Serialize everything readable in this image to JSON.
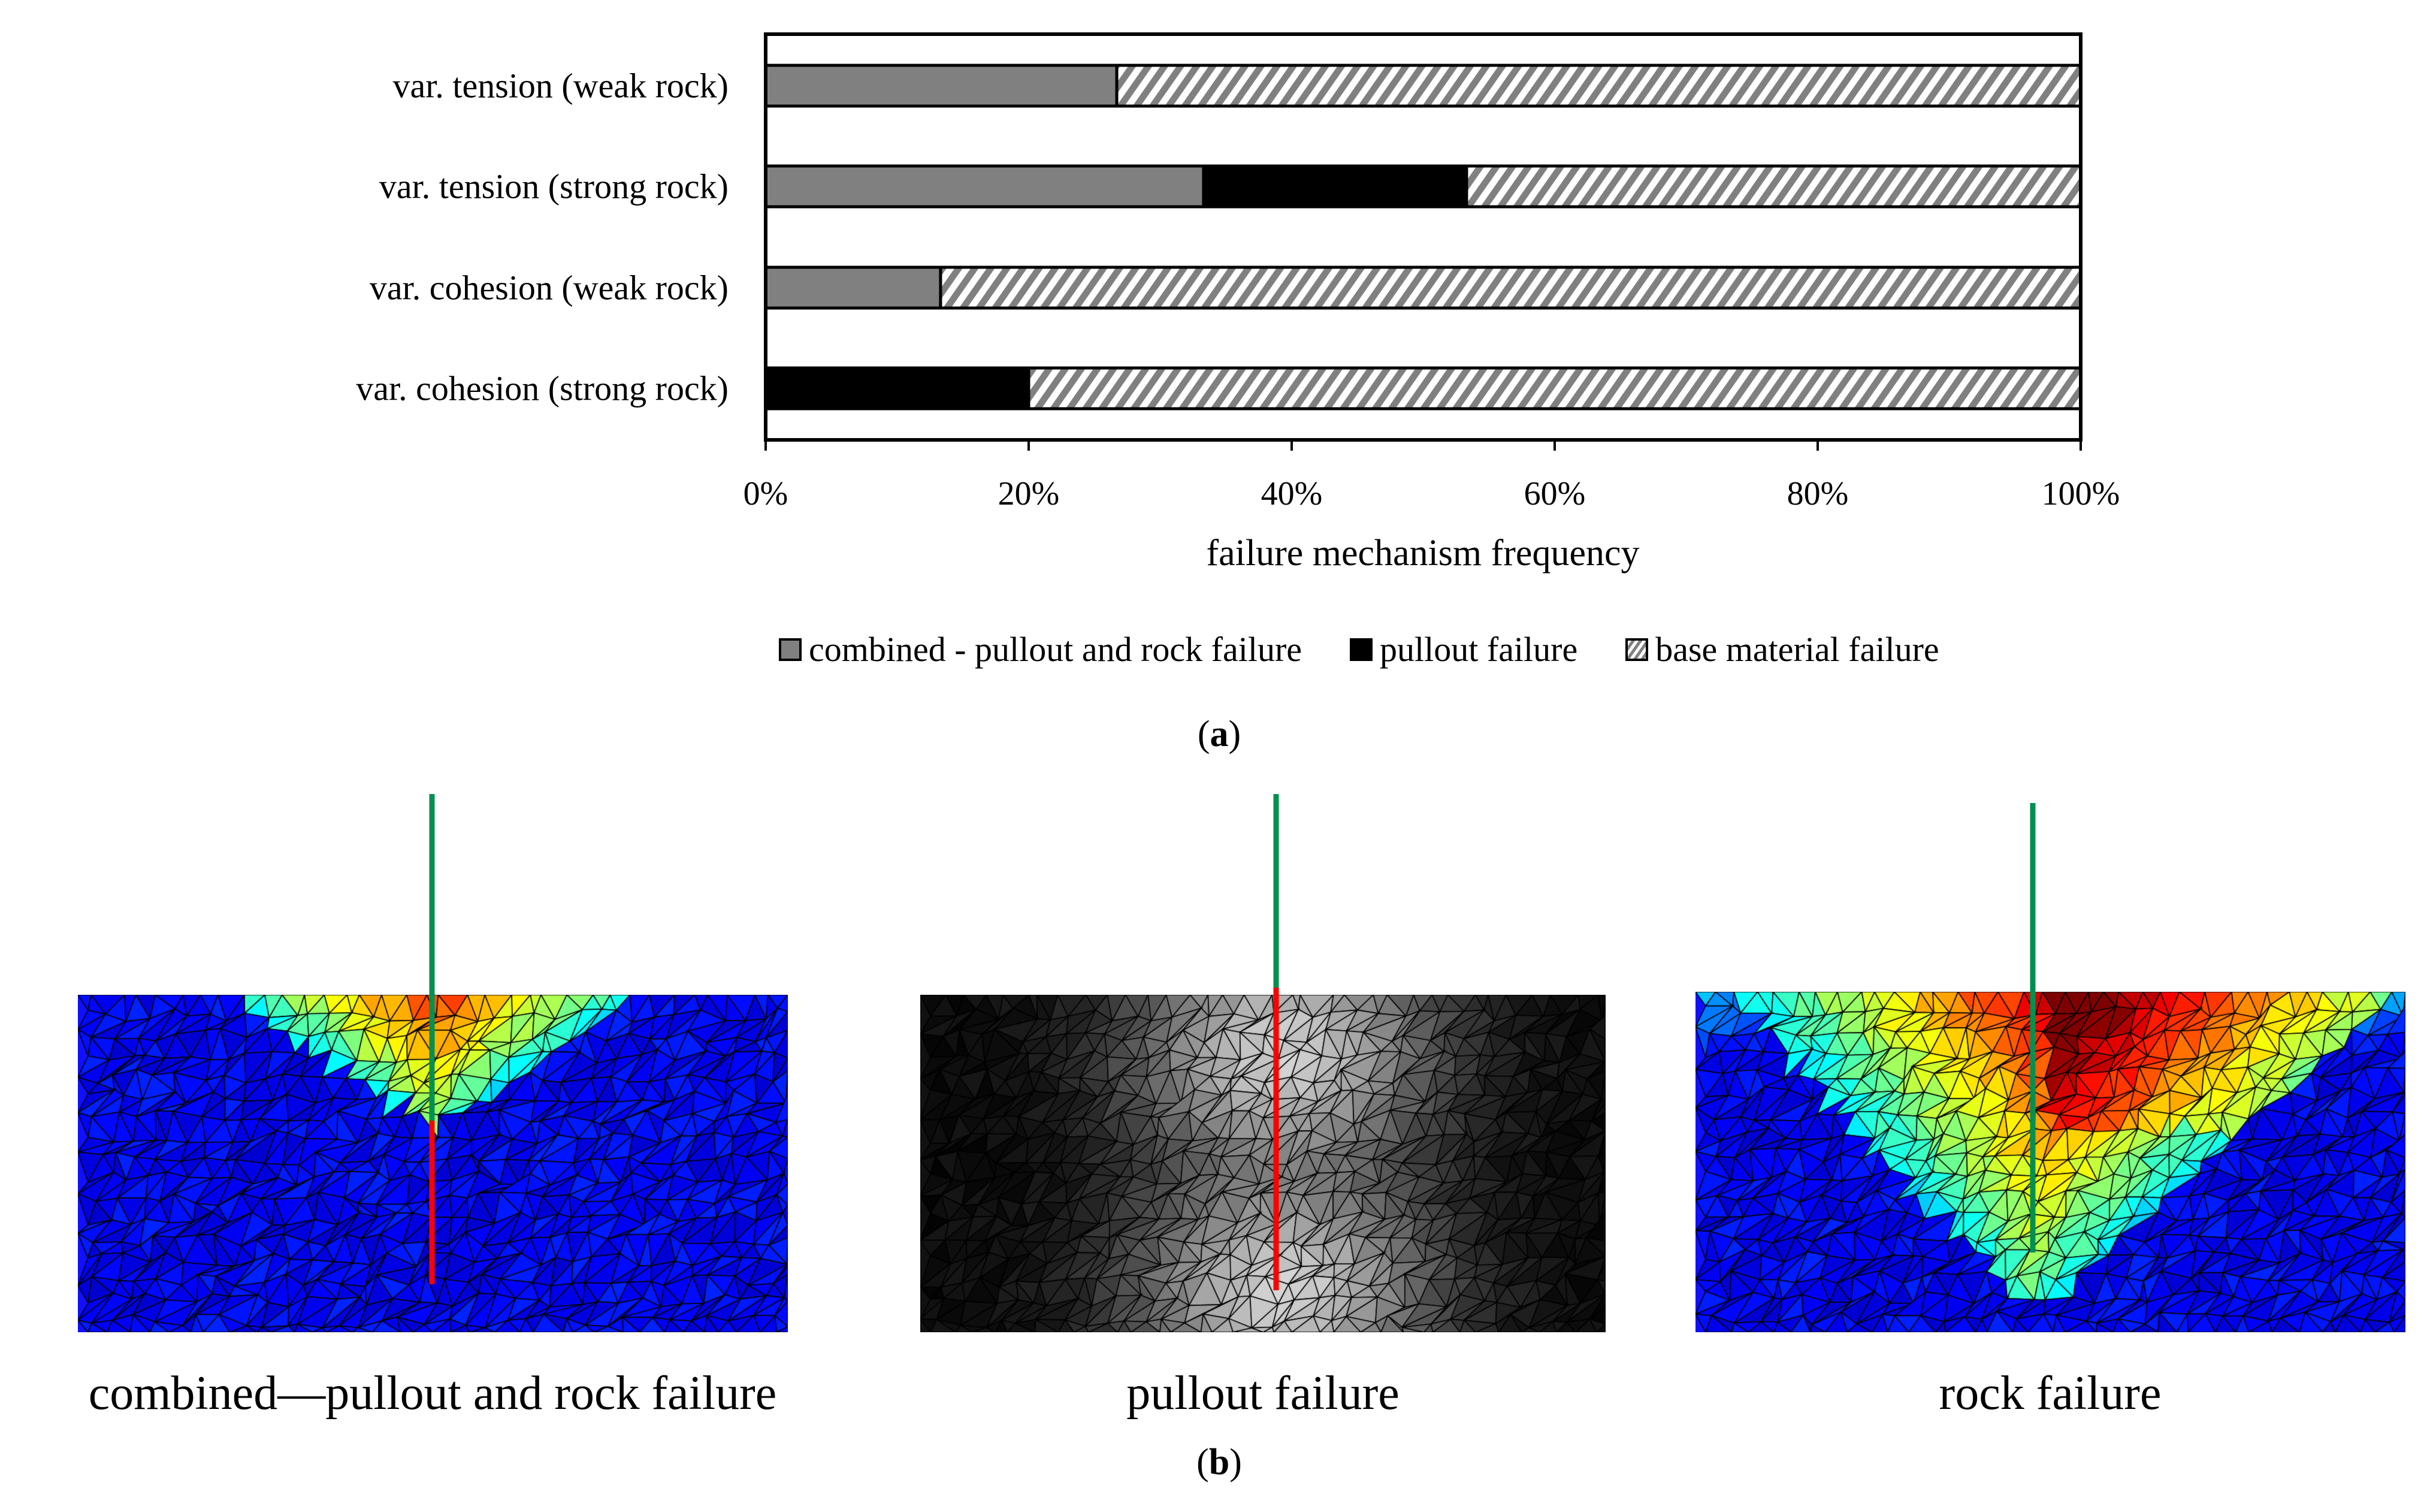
{
  "chart_data": {
    "type": "bar",
    "orientation": "horizontal",
    "stacked": "percent",
    "categories": [
      "var. tension (weak rock)",
      "var. tension (strong rock)",
      "var. cohesion (weak rock)",
      "var. cohesion (strong rock)"
    ],
    "series": [
      {
        "name": "combined - pullout and rock failure",
        "values": [
          26.7,
          33.3,
          13.3,
          0
        ],
        "color": "#808080",
        "pattern": "solid"
      },
      {
        "name": "pullout failure",
        "values": [
          0,
          20.0,
          0,
          20.0
        ],
        "color": "#000000",
        "pattern": "solid"
      },
      {
        "name": "base material failure",
        "values": [
          73.3,
          46.7,
          86.7,
          80.0
        ],
        "color": "#808080",
        "pattern": "diagonal-hatch"
      }
    ],
    "xlabel": "failure mechanism frequency",
    "xlim": [
      0,
      100
    ],
    "xticks": [
      "0%",
      "20%",
      "40%",
      "60%",
      "80%",
      "100%"
    ],
    "grid": false,
    "legend_position": "bottom"
  },
  "subfigure_labels": {
    "a": "a",
    "b": "b"
  },
  "panels": [
    {
      "caption": "combined—pullout and rock failure",
      "colormap": "jet"
    },
    {
      "caption": "pullout failure",
      "colormap": "grayscale"
    },
    {
      "caption": "rock failure",
      "colormap": "jet"
    }
  ],
  "colors": {
    "anchor_free": "#009050",
    "anchor_bonded": "#ff0000"
  }
}
